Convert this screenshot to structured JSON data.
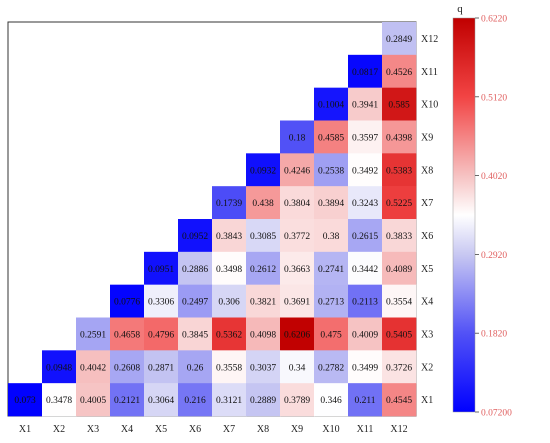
{
  "chart_data": {
    "type": "heatmap",
    "title": "",
    "xlabel": "",
    "ylabel": "",
    "x_labels": [
      "X1",
      "X2",
      "X3",
      "X4",
      "X5",
      "X6",
      "X7",
      "X8",
      "X9",
      "X10",
      "X11",
      "X12"
    ],
    "y_labels": [
      "X12",
      "X11",
      "X10",
      "X9",
      "X8",
      "X7",
      "X6",
      "X5",
      "X4",
      "X3",
      "X2",
      "X1"
    ],
    "cells": [
      {
        "row": "X12",
        "col": "X12",
        "value": "0.2849"
      },
      {
        "row": "X11",
        "col": "X11",
        "value": "0.0817"
      },
      {
        "row": "X11",
        "col": "X12",
        "value": "0.4526"
      },
      {
        "row": "X10",
        "col": "X10",
        "value": "0.1004"
      },
      {
        "row": "X10",
        "col": "X11",
        "value": "0.3941"
      },
      {
        "row": "X10",
        "col": "X12",
        "value": "0.585"
      },
      {
        "row": "X9",
        "col": "X9",
        "value": "0.18"
      },
      {
        "row": "X9",
        "col": "X10",
        "value": "0.4585"
      },
      {
        "row": "X9",
        "col": "X11",
        "value": "0.3597"
      },
      {
        "row": "X9",
        "col": "X12",
        "value": "0.4398"
      },
      {
        "row": "X8",
        "col": "X8",
        "value": "0.0932"
      },
      {
        "row": "X8",
        "col": "X9",
        "value": "0.4246"
      },
      {
        "row": "X8",
        "col": "X10",
        "value": "0.2538"
      },
      {
        "row": "X8",
        "col": "X11",
        "value": "0.3492"
      },
      {
        "row": "X8",
        "col": "X12",
        "value": "0.5383"
      },
      {
        "row": "X7",
        "col": "X7",
        "value": "0.1739"
      },
      {
        "row": "X7",
        "col": "X8",
        "value": "0.438"
      },
      {
        "row": "X7",
        "col": "X9",
        "value": "0.3804"
      },
      {
        "row": "X7",
        "col": "X10",
        "value": "0.3894"
      },
      {
        "row": "X7",
        "col": "X11",
        "value": "0.3243"
      },
      {
        "row": "X7",
        "col": "X12",
        "value": "0.5225"
      },
      {
        "row": "X6",
        "col": "X6",
        "value": "0.0952"
      },
      {
        "row": "X6",
        "col": "X7",
        "value": "0.3843"
      },
      {
        "row": "X6",
        "col": "X8",
        "value": "0.3085"
      },
      {
        "row": "X6",
        "col": "X9",
        "value": "0.3772"
      },
      {
        "row": "X6",
        "col": "X10",
        "value": "0.38"
      },
      {
        "row": "X6",
        "col": "X11",
        "value": "0.2615"
      },
      {
        "row": "X6",
        "col": "X12",
        "value": "0.3833"
      },
      {
        "row": "X5",
        "col": "X5",
        "value": "0.0951"
      },
      {
        "row": "X5",
        "col": "X6",
        "value": "0.2886"
      },
      {
        "row": "X5",
        "col": "X7",
        "value": "0.3498"
      },
      {
        "row": "X5",
        "col": "X8",
        "value": "0.2612"
      },
      {
        "row": "X5",
        "col": "X9",
        "value": "0.3663"
      },
      {
        "row": "X5",
        "col": "X10",
        "value": "0.2741"
      },
      {
        "row": "X5",
        "col": "X11",
        "value": "0.3442"
      },
      {
        "row": "X5",
        "col": "X12",
        "value": "0.4089"
      },
      {
        "row": "X4",
        "col": "X4",
        "value": "0.0776"
      },
      {
        "row": "X4",
        "col": "X5",
        "value": "0.3306"
      },
      {
        "row": "X4",
        "col": "X6",
        "value": "0.2497"
      },
      {
        "row": "X4",
        "col": "X7",
        "value": "0.306"
      },
      {
        "row": "X4",
        "col": "X8",
        "value": "0.3821"
      },
      {
        "row": "X4",
        "col": "X9",
        "value": "0.3691"
      },
      {
        "row": "X4",
        "col": "X10",
        "value": "0.2713"
      },
      {
        "row": "X4",
        "col": "X11",
        "value": "0.2113"
      },
      {
        "row": "X4",
        "col": "X12",
        "value": "0.3554"
      },
      {
        "row": "X3",
        "col": "X3",
        "value": "0.2591"
      },
      {
        "row": "X3",
        "col": "X4",
        "value": "0.4658"
      },
      {
        "row": "X3",
        "col": "X5",
        "value": "0.4796"
      },
      {
        "row": "X3",
        "col": "X6",
        "value": "0.3845"
      },
      {
        "row": "X3",
        "col": "X7",
        "value": "0.5362"
      },
      {
        "row": "X3",
        "col": "X8",
        "value": "0.4098"
      },
      {
        "row": "X3",
        "col": "X9",
        "value": "0.6206"
      },
      {
        "row": "X3",
        "col": "X10",
        "value": "0.475"
      },
      {
        "row": "X3",
        "col": "X11",
        "value": "0.4009"
      },
      {
        "row": "X3",
        "col": "X12",
        "value": "0.5405"
      },
      {
        "row": "X2",
        "col": "X2",
        "value": "0.0948"
      },
      {
        "row": "X2",
        "col": "X3",
        "value": "0.4042"
      },
      {
        "row": "X2",
        "col": "X4",
        "value": "0.2608"
      },
      {
        "row": "X2",
        "col": "X5",
        "value": "0.2871"
      },
      {
        "row": "X2",
        "col": "X6",
        "value": "0.26"
      },
      {
        "row": "X2",
        "col": "X7",
        "value": "0.3558"
      },
      {
        "row": "X2",
        "col": "X8",
        "value": "0.3037"
      },
      {
        "row": "X2",
        "col": "X9",
        "value": "0.34"
      },
      {
        "row": "X2",
        "col": "X10",
        "value": "0.2782"
      },
      {
        "row": "X2",
        "col": "X11",
        "value": "0.3499"
      },
      {
        "row": "X2",
        "col": "X12",
        "value": "0.3726"
      },
      {
        "row": "X1",
        "col": "X1",
        "value": "0.073"
      },
      {
        "row": "X1",
        "col": "X2",
        "value": "0.3478"
      },
      {
        "row": "X1",
        "col": "X3",
        "value": "0.4005"
      },
      {
        "row": "X1",
        "col": "X4",
        "value": "0.2121"
      },
      {
        "row": "X1",
        "col": "X5",
        "value": "0.3064"
      },
      {
        "row": "X1",
        "col": "X6",
        "value": "0.216"
      },
      {
        "row": "X1",
        "col": "X7",
        "value": "0.3121"
      },
      {
        "row": "X1",
        "col": "X8",
        "value": "0.2889"
      },
      {
        "row": "X1",
        "col": "X9",
        "value": "0.3789"
      },
      {
        "row": "X1",
        "col": "X10",
        "value": "0.346"
      },
      {
        "row": "X1",
        "col": "X11",
        "value": "0.211"
      },
      {
        "row": "X1",
        "col": "X12",
        "value": "0.4545"
      }
    ],
    "colorbar": {
      "title": "q",
      "min": 0.072,
      "max": 0.622,
      "tick_labels": [
        "0.6220",
        "0.5120",
        "0.4020",
        "0.2920",
        "0.1820",
        "0.07200"
      ],
      "colors": {
        "low": "#0000ff",
        "mid": "#ffffff",
        "high": "#c00000"
      }
    },
    "grid": false,
    "legend": "right"
  }
}
